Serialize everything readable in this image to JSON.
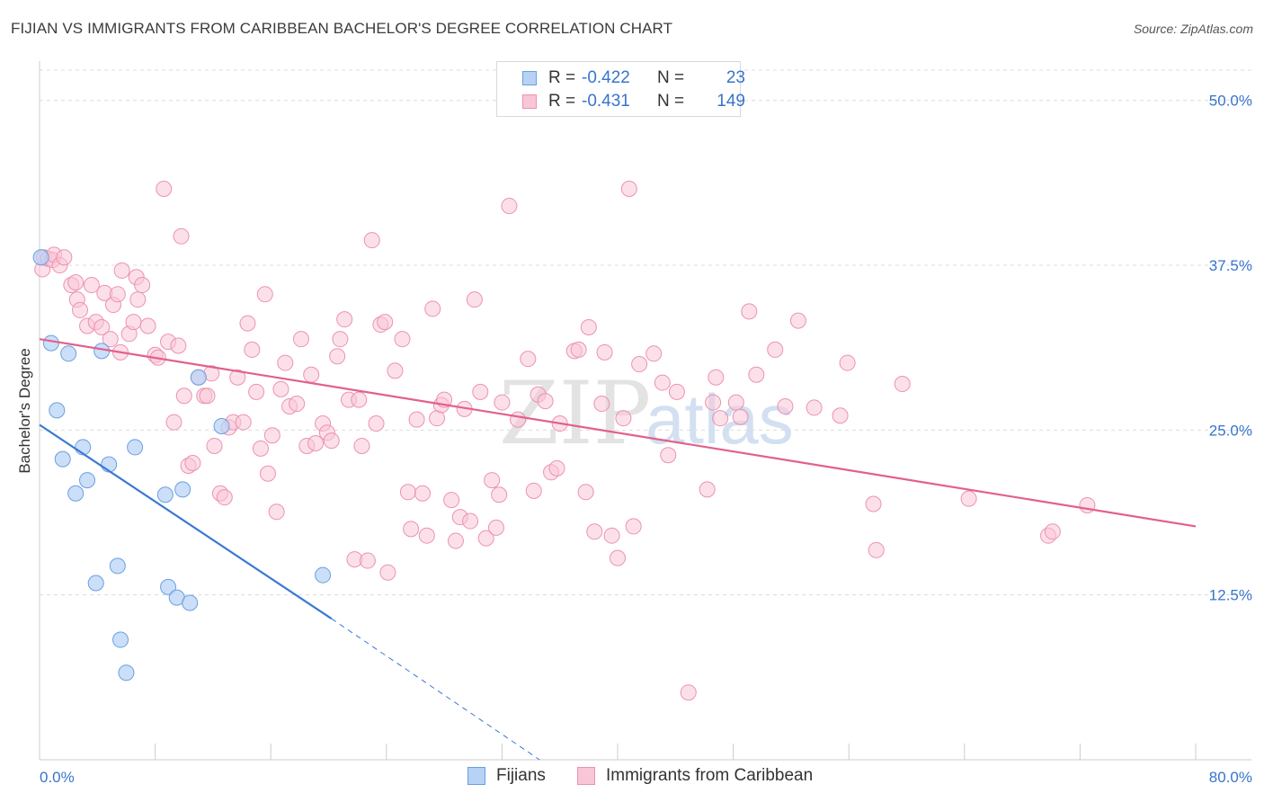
{
  "title": "FIJIAN VS IMMIGRANTS FROM CARIBBEAN BACHELOR'S DEGREE CORRELATION CHART",
  "source": "Source: ZipAtlas.com",
  "watermark": {
    "zip": "ZIP",
    "atlas": "atlas"
  },
  "legend": {
    "r_label": "R =",
    "n_label": "N =",
    "rows": [
      {
        "series": "Fijians",
        "r": "-0.422",
        "n": "23"
      },
      {
        "series": "Immigrants from Caribbean",
        "r": "-0.431",
        "n": "149"
      }
    ]
  },
  "colors": {
    "fijians_fill": "#b6d2f5",
    "fijians_stroke": "#6a9fe0",
    "fijians_line": "#3a78d4",
    "carib_fill": "#f9c6d7",
    "carib_stroke": "#ec92b0",
    "carib_line": "#e2608c",
    "tick_text": "#3874cb",
    "grid": "#dcdcdc"
  },
  "chart_data": {
    "type": "scatter",
    "title": "FIJIAN VS IMMIGRANTS FROM CARIBBEAN BACHELOR'S DEGREE CORRELATION CHART",
    "xlabel": "",
    "ylabel": "Bachelor's Degree",
    "xlim": [
      0,
      80
    ],
    "ylim": [
      0,
      52.3
    ],
    "x_tick_labels": [
      "0.0%",
      "80.0%"
    ],
    "y_ticks": [
      12.5,
      25.0,
      37.5,
      50.0
    ],
    "y_tick_labels": [
      "12.5%",
      "25.0%",
      "37.5%",
      "50.0%"
    ],
    "grid": true,
    "series": [
      {
        "name": "Fijians",
        "points": [
          [
            0.1,
            38.1
          ],
          [
            0.8,
            31.6
          ],
          [
            1.2,
            26.5
          ],
          [
            1.6,
            22.8
          ],
          [
            2.0,
            30.8
          ],
          [
            2.5,
            20.2
          ],
          [
            3.0,
            23.7
          ],
          [
            3.3,
            21.2
          ],
          [
            3.9,
            13.4
          ],
          [
            4.3,
            31.0
          ],
          [
            4.8,
            22.4
          ],
          [
            5.4,
            14.7
          ],
          [
            5.6,
            9.1
          ],
          [
            6.0,
            6.6
          ],
          [
            6.6,
            23.7
          ],
          [
            8.7,
            20.1
          ],
          [
            8.9,
            13.1
          ],
          [
            9.5,
            12.3
          ],
          [
            9.9,
            20.5
          ],
          [
            10.4,
            11.9
          ],
          [
            11.0,
            29.0
          ],
          [
            12.6,
            25.3
          ],
          [
            19.6,
            14.0
          ]
        ],
        "trend": {
          "x": [
            0,
            20.2
          ],
          "y": [
            25.4,
            10.7
          ],
          "dashed_to": [
            34.6,
            0
          ]
        }
      },
      {
        "name": "Immigrants from Caribbean",
        "points": [
          [
            0.2,
            37.2
          ],
          [
            0.3,
            38.1
          ],
          [
            0.6,
            38.0
          ],
          [
            0.9,
            37.9
          ],
          [
            1.0,
            38.3
          ],
          [
            1.4,
            37.5
          ],
          [
            1.7,
            38.1
          ],
          [
            2.2,
            36.0
          ],
          [
            2.5,
            36.2
          ],
          [
            2.6,
            34.9
          ],
          [
            2.8,
            34.1
          ],
          [
            3.3,
            32.9
          ],
          [
            3.6,
            36.0
          ],
          [
            3.9,
            33.2
          ],
          [
            4.3,
            32.8
          ],
          [
            4.5,
            35.4
          ],
          [
            4.9,
            31.9
          ],
          [
            5.1,
            34.5
          ],
          [
            5.4,
            35.3
          ],
          [
            5.6,
            30.9
          ],
          [
            5.7,
            37.1
          ],
          [
            6.2,
            32.3
          ],
          [
            6.5,
            33.2
          ],
          [
            6.7,
            36.6
          ],
          [
            6.8,
            34.9
          ],
          [
            7.1,
            36.0
          ],
          [
            7.5,
            32.9
          ],
          [
            8.0,
            30.7
          ],
          [
            8.2,
            30.5
          ],
          [
            8.6,
            43.3
          ],
          [
            8.9,
            31.7
          ],
          [
            9.3,
            25.6
          ],
          [
            9.6,
            31.4
          ],
          [
            9.8,
            39.7
          ],
          [
            10.0,
            27.6
          ],
          [
            10.3,
            22.3
          ],
          [
            10.6,
            22.5
          ],
          [
            11.0,
            29.0
          ],
          [
            11.4,
            27.6
          ],
          [
            11.6,
            27.6
          ],
          [
            11.9,
            29.3
          ],
          [
            12.1,
            23.8
          ],
          [
            12.5,
            20.2
          ],
          [
            12.8,
            19.9
          ],
          [
            13.1,
            25.2
          ],
          [
            13.4,
            25.6
          ],
          [
            13.7,
            29.0
          ],
          [
            14.1,
            25.6
          ],
          [
            14.4,
            33.1
          ],
          [
            14.7,
            31.1
          ],
          [
            15.0,
            27.9
          ],
          [
            15.3,
            23.6
          ],
          [
            15.6,
            35.3
          ],
          [
            15.8,
            21.7
          ],
          [
            16.1,
            24.6
          ],
          [
            16.4,
            18.8
          ],
          [
            16.7,
            28.1
          ],
          [
            17.0,
            30.1
          ],
          [
            17.3,
            26.8
          ],
          [
            17.8,
            27.0
          ],
          [
            18.1,
            31.9
          ],
          [
            18.5,
            23.8
          ],
          [
            18.8,
            29.2
          ],
          [
            19.1,
            24.0
          ],
          [
            19.6,
            25.5
          ],
          [
            19.9,
            24.8
          ],
          [
            20.2,
            24.2
          ],
          [
            20.6,
            30.6
          ],
          [
            20.8,
            31.9
          ],
          [
            21.1,
            33.4
          ],
          [
            21.4,
            27.3
          ],
          [
            21.8,
            15.2
          ],
          [
            22.1,
            27.3
          ],
          [
            22.3,
            23.8
          ],
          [
            22.7,
            15.1
          ],
          [
            23.0,
            39.4
          ],
          [
            23.3,
            25.5
          ],
          [
            23.6,
            33.0
          ],
          [
            23.9,
            33.2
          ],
          [
            24.1,
            14.2
          ],
          [
            24.6,
            29.5
          ],
          [
            25.1,
            31.9
          ],
          [
            25.5,
            20.3
          ],
          [
            25.7,
            17.5
          ],
          [
            26.1,
            25.8
          ],
          [
            26.5,
            20.2
          ],
          [
            26.8,
            17.0
          ],
          [
            27.2,
            34.2
          ],
          [
            27.5,
            25.9
          ],
          [
            27.8,
            26.9
          ],
          [
            28.0,
            27.3
          ],
          [
            28.5,
            19.7
          ],
          [
            28.8,
            16.6
          ],
          [
            29.1,
            18.4
          ],
          [
            29.4,
            26.6
          ],
          [
            29.8,
            18.1
          ],
          [
            30.1,
            34.9
          ],
          [
            30.5,
            27.9
          ],
          [
            30.9,
            16.8
          ],
          [
            31.3,
            21.2
          ],
          [
            31.6,
            17.6
          ],
          [
            31.8,
            20.1
          ],
          [
            32.0,
            27.1
          ],
          [
            32.5,
            42.0
          ],
          [
            33.1,
            25.8
          ],
          [
            33.8,
            30.4
          ],
          [
            34.2,
            20.4
          ],
          [
            34.5,
            27.7
          ],
          [
            35.0,
            27.2
          ],
          [
            35.4,
            21.8
          ],
          [
            35.8,
            22.1
          ],
          [
            36.0,
            25.5
          ],
          [
            37.0,
            31.0
          ],
          [
            37.3,
            31.1
          ],
          [
            37.8,
            20.3
          ],
          [
            38.0,
            32.8
          ],
          [
            38.4,
            17.3
          ],
          [
            38.9,
            27.0
          ],
          [
            39.1,
            30.9
          ],
          [
            39.6,
            17.0
          ],
          [
            40.0,
            15.3
          ],
          [
            40.4,
            25.9
          ],
          [
            40.8,
            43.3
          ],
          [
            41.1,
            17.7
          ],
          [
            41.5,
            30.0
          ],
          [
            42.5,
            30.8
          ],
          [
            43.1,
            28.6
          ],
          [
            43.5,
            23.1
          ],
          [
            44.1,
            27.9
          ],
          [
            44.9,
            5.1
          ],
          [
            46.2,
            20.5
          ],
          [
            46.6,
            27.1
          ],
          [
            46.8,
            29.0
          ],
          [
            47.1,
            25.9
          ],
          [
            48.2,
            27.1
          ],
          [
            48.5,
            26.0
          ],
          [
            49.1,
            34.0
          ],
          [
            49.6,
            29.2
          ],
          [
            50.9,
            31.1
          ],
          [
            51.6,
            26.8
          ],
          [
            52.5,
            33.3
          ],
          [
            53.6,
            26.7
          ],
          [
            55.4,
            26.1
          ],
          [
            55.9,
            30.1
          ],
          [
            57.7,
            19.4
          ],
          [
            57.9,
            15.9
          ],
          [
            59.7,
            28.5
          ],
          [
            64.3,
            19.8
          ],
          [
            69.8,
            17.0
          ],
          [
            70.1,
            17.3
          ],
          [
            72.5,
            19.3
          ]
        ],
        "trend": {
          "x": [
            0,
            80
          ],
          "y": [
            31.9,
            17.7
          ]
        }
      }
    ]
  }
}
